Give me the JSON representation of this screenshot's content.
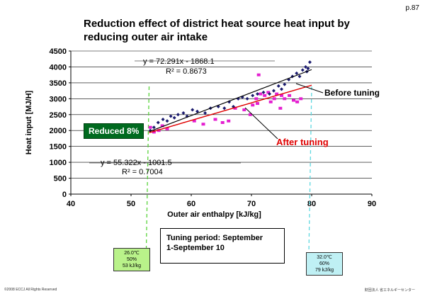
{
  "page_number": "p.87",
  "title_line1": "Reduction effect of district heat source heat input by",
  "title_line2": "reducing outer air intake",
  "chart_data": {
    "type": "scatter",
    "title": "Reduction effect of district heat source heat input by reducing outer air intake",
    "xlabel": "Outer air enthalpy [kJ/kg]",
    "ylabel": "Heat input [MJ/H]",
    "xlim": [
      40,
      90
    ],
    "ylim": [
      0,
      4500
    ],
    "x_ticks": [
      "40",
      "50",
      "60",
      "70",
      "80",
      "90"
    ],
    "y_ticks": [
      "0",
      "500",
      "1000",
      "1500",
      "2000",
      "2500",
      "3000",
      "3500",
      "4000",
      "4500"
    ],
    "grid": "horizontal",
    "series": [
      {
        "name": "Before tuning",
        "color": "#1a1a6e",
        "marker": "diamond",
        "regression": {
          "equation": "y = 72.291x - 1868.1",
          "r2": "R² = 0.8673",
          "slope": 72.291,
          "intercept": -1868.1
        },
        "points": [
          [
            53.2,
            2000
          ],
          [
            53.8,
            2100
          ],
          [
            54.5,
            2250
          ],
          [
            55.3,
            2350
          ],
          [
            56.0,
            2300
          ],
          [
            56.6,
            2450
          ],
          [
            57.2,
            2400
          ],
          [
            57.8,
            2500
          ],
          [
            58.7,
            2550
          ],
          [
            59.3,
            2450
          ],
          [
            60.2,
            2650
          ],
          [
            61.0,
            2600
          ],
          [
            62.3,
            2550
          ],
          [
            63.2,
            2700
          ],
          [
            64.5,
            2750
          ],
          [
            65.5,
            2700
          ],
          [
            66.3,
            2900
          ],
          [
            67.0,
            2750
          ],
          [
            67.8,
            3000
          ],
          [
            68.5,
            3050
          ],
          [
            69.3,
            3000
          ],
          [
            70.2,
            3100
          ],
          [
            71.0,
            3150
          ],
          [
            72.0,
            3200
          ],
          [
            73.0,
            3150
          ],
          [
            73.7,
            3250
          ],
          [
            74.5,
            3400
          ],
          [
            75.0,
            3300
          ],
          [
            75.5,
            3450
          ],
          [
            76.2,
            3600
          ],
          [
            76.8,
            3700
          ],
          [
            77.5,
            3800
          ],
          [
            78.0,
            3700
          ],
          [
            78.5,
            3900
          ],
          [
            79.0,
            4000
          ],
          [
            79.4,
            3950
          ],
          [
            79.7,
            4150
          ],
          [
            79.2,
            3850
          ]
        ]
      },
      {
        "name": "After tuning",
        "color": "#e41fd0",
        "marker": "square",
        "regression": {
          "equation": "y = 55.322x - 1001.5",
          "r2": "R² = 0.7004",
          "slope": 55.322,
          "intercept": -1001.5
        },
        "points": [
          [
            53.2,
            2100
          ],
          [
            53.8,
            1950
          ],
          [
            54.6,
            2000
          ],
          [
            55.2,
            2150
          ],
          [
            56.0,
            2050
          ],
          [
            60.5,
            2300
          ],
          [
            62.0,
            2200
          ],
          [
            64.0,
            2350
          ],
          [
            65.2,
            2250
          ],
          [
            66.2,
            2300
          ],
          [
            67.3,
            2700
          ],
          [
            68.8,
            2650
          ],
          [
            69.8,
            2500
          ],
          [
            70.2,
            2800
          ],
          [
            70.8,
            3000
          ],
          [
            71.5,
            3150
          ],
          [
            71.2,
            3750
          ],
          [
            72.2,
            3100
          ],
          [
            72.8,
            3200
          ],
          [
            73.2,
            2900
          ],
          [
            73.8,
            3000
          ],
          [
            74.2,
            3150
          ],
          [
            75.0,
            3100
          ],
          [
            75.5,
            3000
          ],
          [
            76.3,
            3100
          ],
          [
            77.0,
            2950
          ],
          [
            77.6,
            2900
          ],
          [
            78.2,
            3000
          ],
          [
            71.0,
            2850
          ],
          [
            74.8,
            2700
          ]
        ]
      }
    ],
    "annotations": {
      "before_label": "Before tuning",
      "after_label": "After tuning",
      "reduced_label": "Reduced 8%",
      "vline_left_x": 53,
      "vline_right_x": 80
    }
  },
  "tuning_box": {
    "line1": "Tuning period: September",
    "line2": "1-September 10"
  },
  "condition_left": {
    "temp": "26.0℃",
    "humidity": "50%",
    "enthalpy": "53 kJ/kg",
    "border_color": "#58d33a"
  },
  "condition_right": {
    "temp": "32.0℃",
    "humidity": "60%",
    "enthalpy": "79 kJ/kg",
    "border_color": "#5fd8e0"
  },
  "footer": {
    "copyright": "©2008  ECCJ All Rights Reserved",
    "organization": "財団法人  省エネルギーセンター"
  }
}
